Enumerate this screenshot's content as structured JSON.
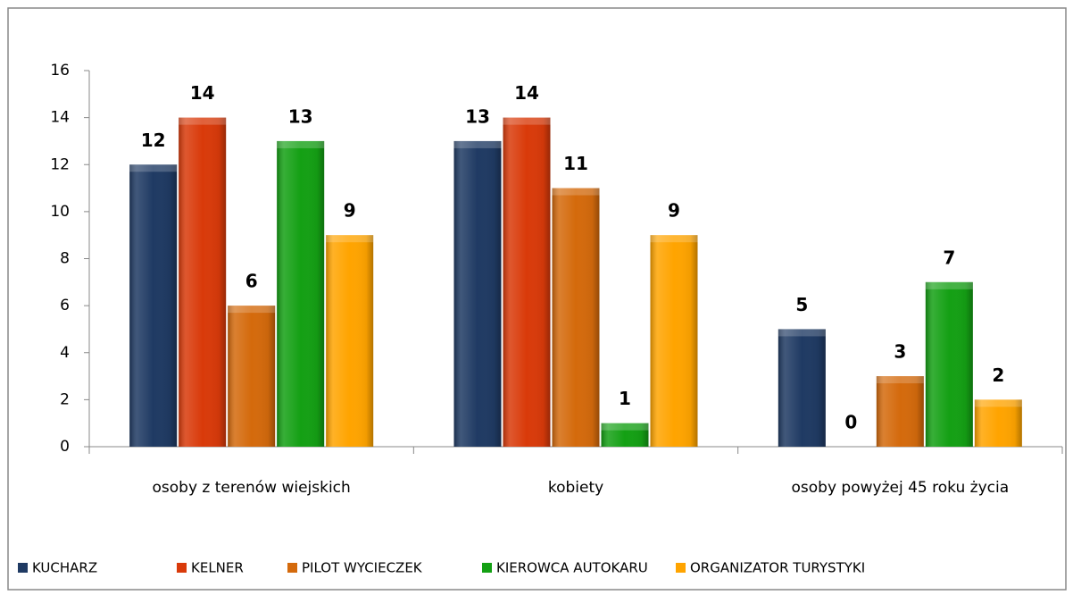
{
  "chart_data": {
    "type": "bar",
    "categories": [
      "osoby z terenów wiejskich",
      "kobiety",
      "osoby powyżej 45 roku życia"
    ],
    "series": [
      {
        "name": "KUCHARZ",
        "color": "#1f3a63",
        "values": [
          12,
          13,
          5
        ]
      },
      {
        "name": "KELNER",
        "color": "#d93a0a",
        "values": [
          14,
          14,
          0
        ]
      },
      {
        "name": "PILOT WYCIECZEK",
        "color": "#d46a0c",
        "values": [
          6,
          11,
          3
        ]
      },
      {
        "name": "KIEROWCA AUTOKARU",
        "color": "#14a014",
        "values": [
          13,
          1,
          7
        ]
      },
      {
        "name": "ORGANIZATOR TURYSTYKI",
        "color": "#ffa400",
        "values": [
          9,
          9,
          2
        ]
      }
    ],
    "ylim": [
      0,
      16
    ],
    "yticks": [
      0,
      2,
      4,
      6,
      8,
      10,
      12,
      14,
      16
    ],
    "grid": false,
    "legend": "bottom"
  }
}
